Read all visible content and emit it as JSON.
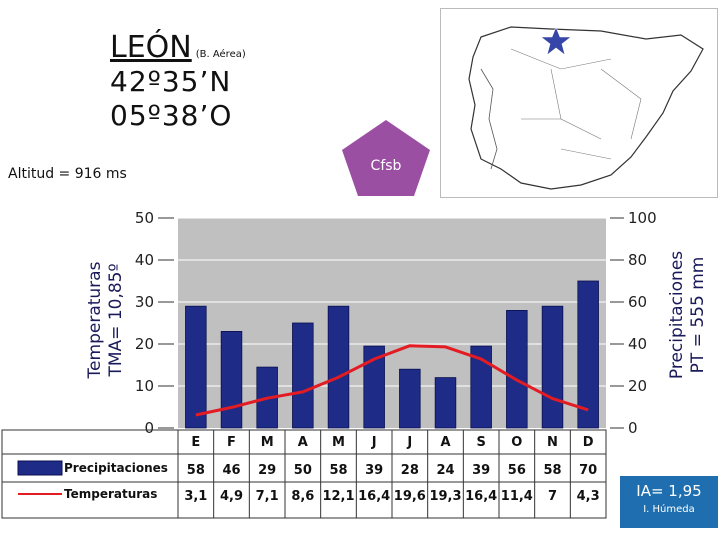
{
  "header": {
    "city": "LEÓN",
    "station": "(B. Aérea)",
    "latitude": "42º35’N",
    "longitude": "05º38’O",
    "altitude": "Altitud = 916 ms",
    "climate_code": "Cfsb"
  },
  "axes": {
    "left_label_line1": "Temperaturas",
    "left_label_line2": "TMA= 10,85º",
    "right_label_line1": "Precipitaciones",
    "right_label_line2": "PT = 555 mm"
  },
  "legend": {
    "precip_label": "Precipitaciones",
    "temp_label": "Temperaturas"
  },
  "table": {
    "precip_values": [
      "58",
      "46",
      "29",
      "50",
      "58",
      "39",
      "28",
      "24",
      "39",
      "56",
      "58",
      "70"
    ],
    "temp_values": [
      "3,1",
      "4,9",
      "7,1",
      "8,6",
      "12,1",
      "16,4",
      "19,6",
      "19,3",
      "16,4",
      "11,4",
      "7",
      "4,3"
    ]
  },
  "aridity": {
    "value": "IA= 1,95",
    "label": "I. Húmeda"
  },
  "colors": {
    "bar": "#1f2c87",
    "line": "#e31b23",
    "plot_bg": "#c0c0c0",
    "pentagon": "#9b4fa3",
    "star": "#3545a8",
    "ia_box": "#1f6fb0"
  },
  "chart_data": {
    "type": "bar",
    "categories": [
      "E",
      "F",
      "M",
      "A",
      "M",
      "J",
      "J",
      "A",
      "S",
      "O",
      "N",
      "D"
    ],
    "series": [
      {
        "name": "Precipitaciones",
        "type": "bar",
        "axis": "right",
        "values": [
          58,
          46,
          29,
          50,
          58,
          39,
          28,
          24,
          39,
          56,
          58,
          70
        ]
      },
      {
        "name": "Temperaturas",
        "type": "line",
        "axis": "left",
        "values": [
          3.1,
          4.9,
          7.1,
          8.6,
          12.1,
          16.4,
          19.6,
          19.3,
          16.4,
          11.4,
          7,
          4.3
        ]
      }
    ],
    "ylim_left": [
      0,
      50
    ],
    "yticks_left": [
      "0",
      "10",
      "20",
      "30",
      "40",
      "50"
    ],
    "ylim_right": [
      0,
      100
    ],
    "yticks_right": [
      "0",
      "20",
      "40",
      "60",
      "80",
      "100"
    ],
    "grid": true
  }
}
